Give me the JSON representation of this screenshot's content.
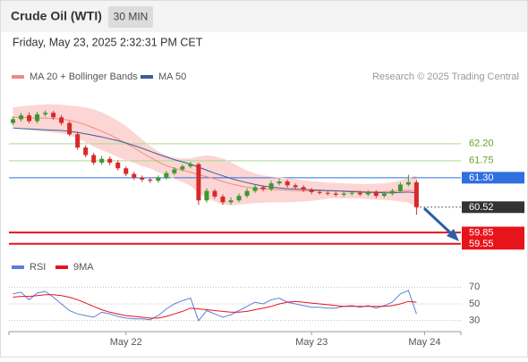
{
  "chart_data": [
    {
      "type": "candlestick",
      "title": "Crude Oil (WTI)",
      "subtitle": "30 MIN",
      "timestamp": "Friday, May 23, 2025 2:32:31 PM CET",
      "credit": "Research © 2025 Trading Central",
      "up_color": "#3a9a2c",
      "down_color": "#d62a2a",
      "open": [
        62.75,
        62.85,
        62.95,
        62.8,
        62.98,
        63.02,
        62.9,
        62.75,
        62.45,
        62.1,
        61.9,
        61.7,
        61.8,
        61.7,
        61.55,
        61.4,
        61.3,
        61.25,
        61.22,
        61.3,
        61.42,
        61.52,
        61.6,
        61.66,
        60.7,
        60.95,
        60.8,
        60.65,
        60.7,
        60.82,
        60.95,
        61.05,
        61.0,
        61.15,
        61.2,
        61.1,
        61.05,
        60.98,
        60.92,
        60.9,
        60.88,
        60.85,
        60.88,
        60.9,
        60.86,
        60.92,
        60.82,
        60.88,
        60.95,
        61.12,
        61.18
      ],
      "high": [
        62.92,
        63.02,
        63.03,
        63.05,
        63.08,
        63.07,
        62.96,
        62.8,
        62.52,
        62.16,
        61.96,
        61.88,
        61.86,
        61.76,
        61.6,
        61.46,
        61.36,
        61.3,
        61.36,
        61.48,
        61.58,
        61.66,
        61.72,
        61.7,
        61.02,
        61.0,
        60.86,
        60.78,
        60.88,
        61.02,
        61.12,
        61.1,
        61.22,
        61.28,
        61.25,
        61.15,
        61.1,
        61.03,
        60.97,
        60.95,
        60.93,
        60.93,
        60.95,
        60.95,
        60.97,
        60.97,
        60.93,
        61.01,
        61.18,
        61.38,
        61.24
      ],
      "low": [
        62.69,
        62.79,
        62.74,
        62.74,
        62.92,
        62.84,
        62.69,
        62.4,
        62.04,
        61.84,
        61.64,
        61.64,
        61.63,
        61.49,
        61.34,
        61.24,
        61.19,
        61.16,
        61.17,
        61.25,
        61.37,
        61.47,
        61.55,
        60.58,
        60.64,
        60.74,
        60.58,
        60.59,
        60.65,
        60.77,
        60.9,
        60.94,
        60.95,
        61.1,
        61.04,
        60.99,
        60.92,
        60.86,
        60.85,
        60.83,
        60.8,
        60.8,
        60.83,
        60.81,
        60.81,
        60.76,
        60.77,
        60.83,
        60.9,
        61.07,
        60.32
      ],
      "close": [
        62.85,
        62.95,
        62.8,
        62.98,
        63.02,
        62.9,
        62.75,
        62.45,
        62.1,
        61.9,
        61.7,
        61.8,
        61.7,
        61.55,
        61.4,
        61.3,
        61.25,
        61.22,
        61.3,
        61.42,
        61.52,
        61.6,
        61.66,
        60.7,
        60.95,
        60.8,
        60.65,
        60.7,
        60.82,
        60.95,
        61.05,
        61.0,
        61.15,
        61.2,
        61.1,
        61.05,
        60.98,
        60.92,
        60.9,
        60.88,
        60.85,
        60.88,
        60.9,
        60.86,
        60.92,
        60.82,
        60.88,
        60.95,
        61.12,
        61.18,
        60.52
      ],
      "overlays": [
        {
          "name": "MA 20 + Bollinger Bands",
          "color": "#f08a84",
          "band_color": "#fcd6d4",
          "values": [
            62.9,
            62.9,
            62.89,
            62.88,
            62.88,
            62.87,
            62.85,
            62.82,
            62.77,
            62.7,
            62.62,
            62.53,
            62.44,
            62.33,
            62.21,
            62.09,
            61.96,
            61.84,
            61.72,
            61.62,
            61.55,
            61.5,
            61.45,
            61.38,
            61.33,
            61.27,
            61.2,
            61.14,
            61.09,
            61.05,
            61.02,
            61.0,
            60.99,
            60.98,
            60.97,
            60.96,
            60.95,
            60.95,
            60.95,
            60.96,
            60.96,
            60.95,
            60.95,
            60.94,
            60.93,
            60.93,
            60.93,
            60.94,
            60.95,
            60.97,
            60.94
          ],
          "upper": [
            63.15,
            63.18,
            63.2,
            63.22,
            63.23,
            63.23,
            63.22,
            63.2,
            63.18,
            63.15,
            63.1,
            63.02,
            62.92,
            62.8,
            62.65,
            62.48,
            62.3,
            62.12,
            61.98,
            61.88,
            61.82,
            61.8,
            61.8,
            61.85,
            61.88,
            61.86,
            61.8,
            61.7,
            61.58,
            61.48,
            61.4,
            61.35,
            61.32,
            61.3,
            61.28,
            61.25,
            61.22,
            61.2,
            61.18,
            61.16,
            61.15,
            61.14,
            61.13,
            61.12,
            61.12,
            61.13,
            61.14,
            61.17,
            61.22,
            61.28,
            61.35
          ],
          "lower": [
            62.65,
            62.62,
            62.58,
            62.55,
            62.53,
            62.51,
            62.48,
            62.44,
            62.36,
            62.25,
            62.14,
            62.04,
            61.96,
            61.86,
            61.77,
            61.7,
            61.62,
            61.56,
            61.46,
            61.36,
            61.28,
            61.2,
            61.1,
            60.91,
            60.78,
            60.68,
            60.6,
            60.58,
            60.6,
            60.62,
            60.64,
            60.65,
            60.66,
            60.66,
            60.66,
            60.67,
            60.68,
            60.7,
            60.72,
            60.76,
            60.77,
            60.76,
            60.77,
            60.76,
            60.74,
            60.73,
            60.72,
            60.71,
            60.68,
            60.66,
            60.53
          ]
        },
        {
          "name": "MA 50",
          "color": "#3a5d9a",
          "values": [
            62.62,
            62.6,
            62.59,
            62.58,
            62.57,
            62.56,
            62.55,
            62.53,
            62.5,
            62.46,
            62.42,
            62.38,
            62.33,
            62.28,
            62.22,
            62.15,
            62.08,
            62.0,
            61.92,
            61.85,
            61.78,
            61.72,
            61.66,
            61.58,
            61.5,
            61.42,
            61.35,
            61.28,
            61.22,
            61.17,
            61.12,
            61.08,
            61.05,
            61.03,
            61.01,
            61.0,
            60.99,
            60.98,
            60.97,
            60.96,
            60.95,
            60.94,
            60.93,
            60.92,
            60.91,
            60.91,
            60.9,
            60.9,
            60.91,
            60.92,
            60.9
          ]
        }
      ],
      "levels": [
        {
          "value": 62.2,
          "label": "62.20",
          "color": "#a9d98e",
          "label_color": "#6a9f2c",
          "style": "text"
        },
        {
          "value": 61.75,
          "label": "61.75",
          "color": "#a9d98e",
          "label_color": "#6a9f2c",
          "style": "text"
        },
        {
          "value": 61.3,
          "label": "61.30",
          "color": "#2f6fe0",
          "style": "badge"
        },
        {
          "value": 60.52,
          "label": "60.52",
          "color": "#333333",
          "style": "badge",
          "dotted": true
        },
        {
          "value": 59.85,
          "label": "59.85",
          "color": "#e8141b",
          "style": "badge",
          "width": 2
        },
        {
          "value": 59.55,
          "label": "59.55",
          "color": "#e8141b",
          "style": "badge",
          "width": 2
        }
      ],
      "xlim": [
        -0.5,
        55.5
      ],
      "ylim": [
        59.26,
        63.64
      ]
    },
    {
      "type": "line",
      "series": [
        {
          "name": "RSI",
          "color": "#5b7fd6",
          "values": [
            62,
            64,
            55,
            63,
            65,
            58,
            50,
            42,
            38,
            36,
            34,
            40,
            38,
            35,
            33,
            32,
            32,
            31,
            36,
            44,
            50,
            54,
            57,
            30,
            42,
            38,
            34,
            37,
            42,
            47,
            52,
            50,
            55,
            57,
            52,
            50,
            48,
            46,
            46,
            45,
            45,
            47,
            48,
            46,
            48,
            45,
            48,
            52,
            62,
            66,
            38
          ]
        },
        {
          "name": "9MA",
          "color": "#e8141b",
          "values": [
            58,
            59,
            59,
            60,
            61,
            61,
            60,
            58,
            55,
            51,
            47,
            43,
            40,
            38,
            36,
            35,
            34,
            33,
            33,
            35,
            38,
            41,
            45,
            44,
            43,
            42,
            41,
            40,
            40,
            41,
            43,
            45,
            47,
            50,
            52,
            53,
            52,
            51,
            50,
            49,
            48,
            47,
            47,
            47,
            47,
            47,
            47,
            48,
            50,
            53,
            52
          ]
        }
      ],
      "xlim": [
        -0.5,
        55.5
      ],
      "ylim": [
        20,
        80
      ],
      "yticks": [
        30,
        50,
        70
      ],
      "grid": true,
      "xticks": [
        {
          "value": 14,
          "label": "May 22"
        },
        {
          "value": 37,
          "label": "May 23"
        },
        {
          "value": 51,
          "label": "May 24"
        }
      ]
    }
  ]
}
